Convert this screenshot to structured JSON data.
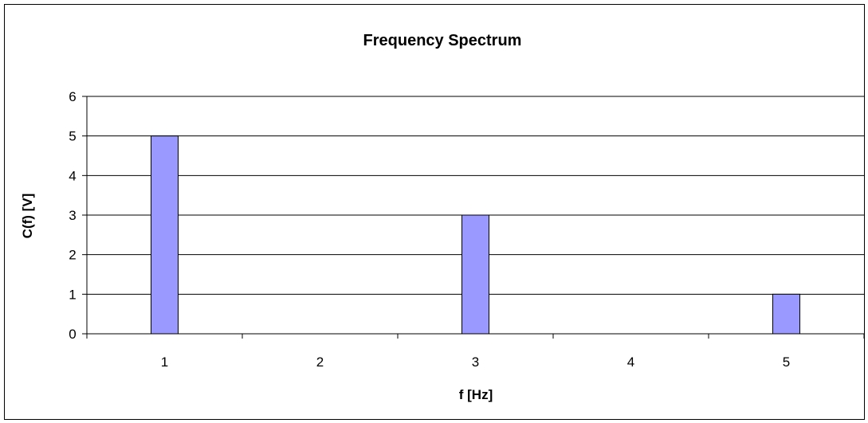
{
  "chart_data": {
    "type": "bar",
    "title": "Frequency Spectrum",
    "xlabel": "f [Hz]",
    "ylabel": "C(f) [V]",
    "categories": [
      "1",
      "2",
      "3",
      "4",
      "5"
    ],
    "values": [
      5,
      0,
      3,
      0,
      1
    ],
    "ylim": [
      0,
      6
    ],
    "yticks": [
      0,
      1,
      2,
      3,
      4,
      5,
      6
    ],
    "grid": true,
    "legend": "none",
    "bar_color": "#9999ff"
  }
}
